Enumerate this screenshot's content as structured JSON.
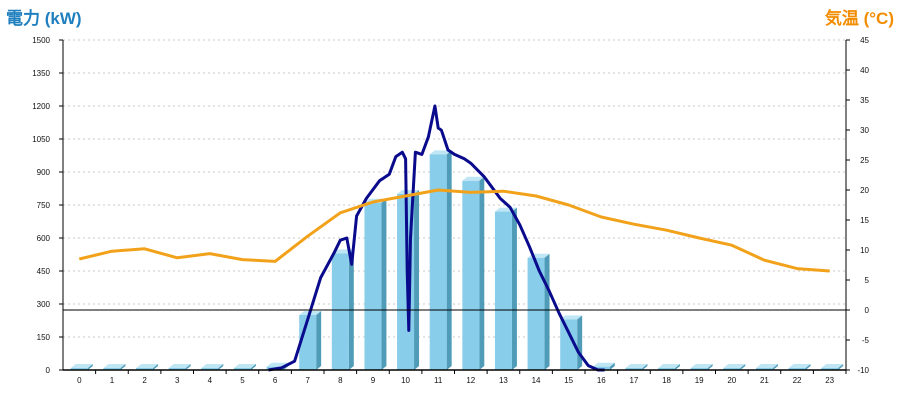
{
  "chart_data": {
    "type": "bar",
    "title": "",
    "xlabel": "",
    "ylabel_left": "電力 (kW)",
    "ylabel_right": "気温 (°C)",
    "categories": [
      "0",
      "1",
      "2",
      "3",
      "4",
      "5",
      "6",
      "7",
      "8",
      "9",
      "10",
      "11",
      "12",
      "13",
      "14",
      "15",
      "16",
      "17",
      "18",
      "19",
      "20",
      "21",
      "22",
      "23"
    ],
    "y_left_ticks": [
      0,
      150,
      300,
      450,
      600,
      750,
      900,
      1050,
      1200,
      1350,
      1500
    ],
    "y_right_ticks": [
      -10,
      -5,
      0,
      5,
      10,
      15,
      20,
      25,
      30,
      35,
      40,
      45
    ],
    "ylim_left": [
      0,
      1500
    ],
    "ylim_right": [
      -10,
      45
    ],
    "grid": true,
    "series": [
      {
        "kind": "bar",
        "axis": "left",
        "values": [
          0,
          0,
          0,
          0,
          0,
          0,
          15,
          250,
          530,
          760,
          800,
          980,
          860,
          720,
          510,
          230,
          15,
          0,
          0,
          0,
          0,
          0,
          0,
          0
        ]
      },
      {
        "kind": "line",
        "axis": "left",
        "x": [
          5.8,
          6.2,
          6.6,
          7.0,
          7.4,
          7.8,
          8.0,
          8.2,
          8.35,
          8.5,
          8.8,
          9.2,
          9.5,
          9.7,
          9.9,
          10.0,
          10.05,
          10.1,
          10.15,
          10.3,
          10.5,
          10.7,
          10.9,
          11.0,
          11.1,
          11.3,
          11.5,
          11.8,
          12.0,
          12.2,
          12.4,
          12.6,
          12.9,
          13.2,
          13.5,
          13.8,
          14.1,
          14.4,
          14.7,
          15.0,
          15.3,
          15.6,
          15.9,
          16.1
        ],
        "values": [
          0,
          10,
          40,
          230,
          420,
          530,
          590,
          600,
          480,
          700,
          780,
          860,
          890,
          970,
          990,
          960,
          450,
          180,
          600,
          990,
          980,
          1060,
          1200,
          1100,
          1090,
          1000,
          980,
          960,
          940,
          910,
          880,
          840,
          780,
          740,
          660,
          560,
          450,
          360,
          260,
          170,
          80,
          20,
          0,
          0
        ]
      },
      {
        "kind": "line",
        "axis": "right",
        "x": [
          0,
          1,
          2,
          3,
          4,
          5,
          6,
          7,
          8,
          9,
          10,
          11,
          12,
          13,
          14,
          15,
          16,
          17,
          18,
          19,
          20,
          21,
          22,
          23
        ],
        "values": [
          8.5,
          9.8,
          10.2,
          8.7,
          9.4,
          8.4,
          8.1,
          12.3,
          16.2,
          18.0,
          19.0,
          20.0,
          19.6,
          19.8,
          19.0,
          17.5,
          15.5,
          14.3,
          13.3,
          12.0,
          10.8,
          8.3,
          6.9,
          6.5
        ]
      }
    ],
    "colors": {
      "bar_front": "#88cde9",
      "bar_side": "#4f9bb8",
      "bar_top": "#bfe6f5",
      "power_line": "#0a0a8c",
      "temp_line": "#f2a21a",
      "left_axis_label": "#1f7fbf",
      "right_axis_label": "#f28c00",
      "grid": "#c8c8c8",
      "zero_line": "#000000"
    }
  }
}
